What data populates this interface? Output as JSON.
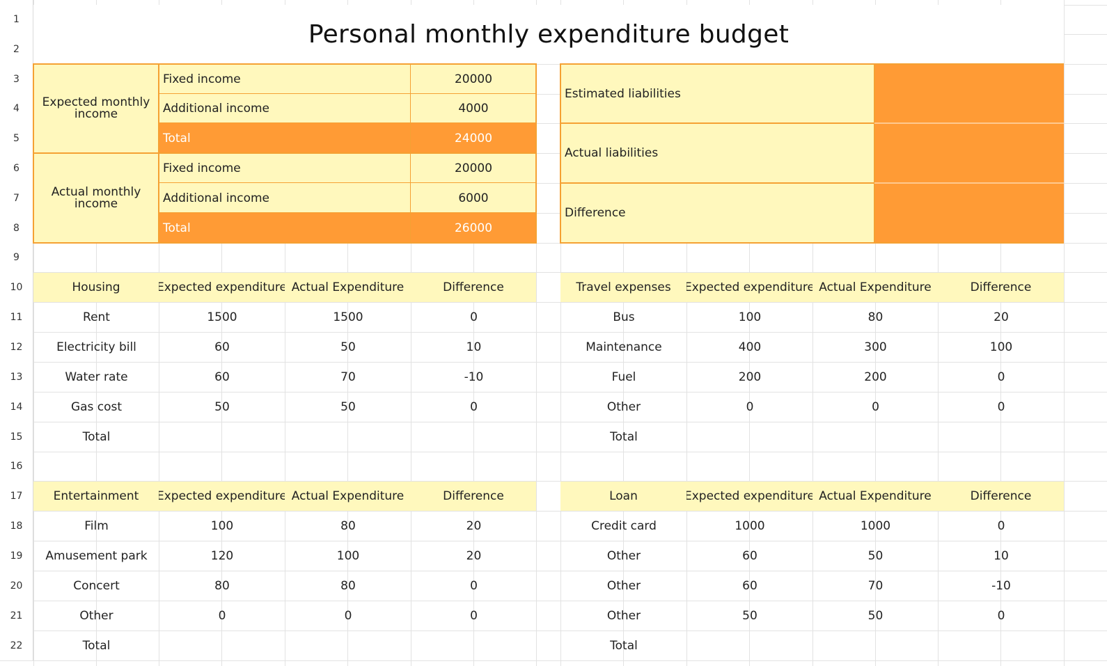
{
  "sheet": {
    "title": "Personal monthly expenditure budget",
    "row_numbers": [
      "1",
      "2",
      "3",
      "4",
      "5",
      "6",
      "7",
      "8",
      "9",
      "10",
      "11",
      "12",
      "13",
      "14",
      "15",
      "16",
      "17",
      "18",
      "19",
      "20",
      "21",
      "22"
    ]
  },
  "income": {
    "expected_label": "Expected monthly income",
    "actual_label": "Actual monthly income",
    "expected_rows": [
      {
        "label": "Fixed income",
        "value": "20000"
      },
      {
        "label": "Additional income",
        "value": "4000"
      },
      {
        "label": "Total",
        "value": "24000"
      }
    ],
    "actual_rows": [
      {
        "label": "Fixed income",
        "value": "20000"
      },
      {
        "label": "Additional income",
        "value": "6000"
      },
      {
        "label": "Total",
        "value": "26000"
      }
    ]
  },
  "liabilities": {
    "estimated": "Estimated liabilities",
    "actual": "Actual liabilities",
    "difference": "Difference"
  },
  "housing": {
    "headers": [
      "Housing",
      "Expected expenditure",
      "Actual Expenditure",
      "Difference"
    ],
    "rows": [
      [
        "Rent",
        "1500",
        "1500",
        "0"
      ],
      [
        "Electricity bill",
        "60",
        "50",
        "10"
      ],
      [
        "Water rate",
        "60",
        "70",
        "-10"
      ],
      [
        "Gas cost",
        "50",
        "50",
        "0"
      ],
      [
        "Total",
        "",
        "",
        ""
      ]
    ]
  },
  "travel": {
    "headers": [
      "Travel expenses",
      "Expected expenditure",
      "Actual Expenditure",
      "Difference"
    ],
    "rows": [
      [
        "Bus",
        "100",
        "80",
        "20"
      ],
      [
        "Maintenance",
        "400",
        "300",
        "100"
      ],
      [
        "Fuel",
        "200",
        "200",
        "0"
      ],
      [
        "Other",
        "0",
        "0",
        "0"
      ],
      [
        "Total",
        "",
        "",
        ""
      ]
    ]
  },
  "entertainment": {
    "headers": [
      "Entertainment",
      "Expected expenditure",
      "Actual Expenditure",
      "Difference"
    ],
    "rows": [
      [
        "Film",
        "100",
        "80",
        "20"
      ],
      [
        "Amusement park",
        "120",
        "100",
        "20"
      ],
      [
        "Concert",
        "80",
        "80",
        "0"
      ],
      [
        "Other",
        "0",
        "0",
        "0"
      ],
      [
        "Total",
        "",
        "",
        ""
      ]
    ]
  },
  "loan": {
    "headers": [
      "Loan",
      "Expected expenditure",
      "Actual Expenditure",
      "Difference"
    ],
    "rows": [
      [
        "Credit card",
        "1000",
        "1000",
        "0"
      ],
      [
        "Other",
        "60",
        "50",
        "10"
      ],
      [
        "Other",
        "60",
        "70",
        "-10"
      ],
      [
        "Other",
        "50",
        "50",
        "0"
      ],
      [
        "Total",
        "",
        "",
        ""
      ]
    ]
  },
  "colors": {
    "light_yellow": "#fff8bd",
    "orange": "#ff9b35",
    "border_orange": "#f5a133",
    "grid": "#e2e2e2"
  }
}
